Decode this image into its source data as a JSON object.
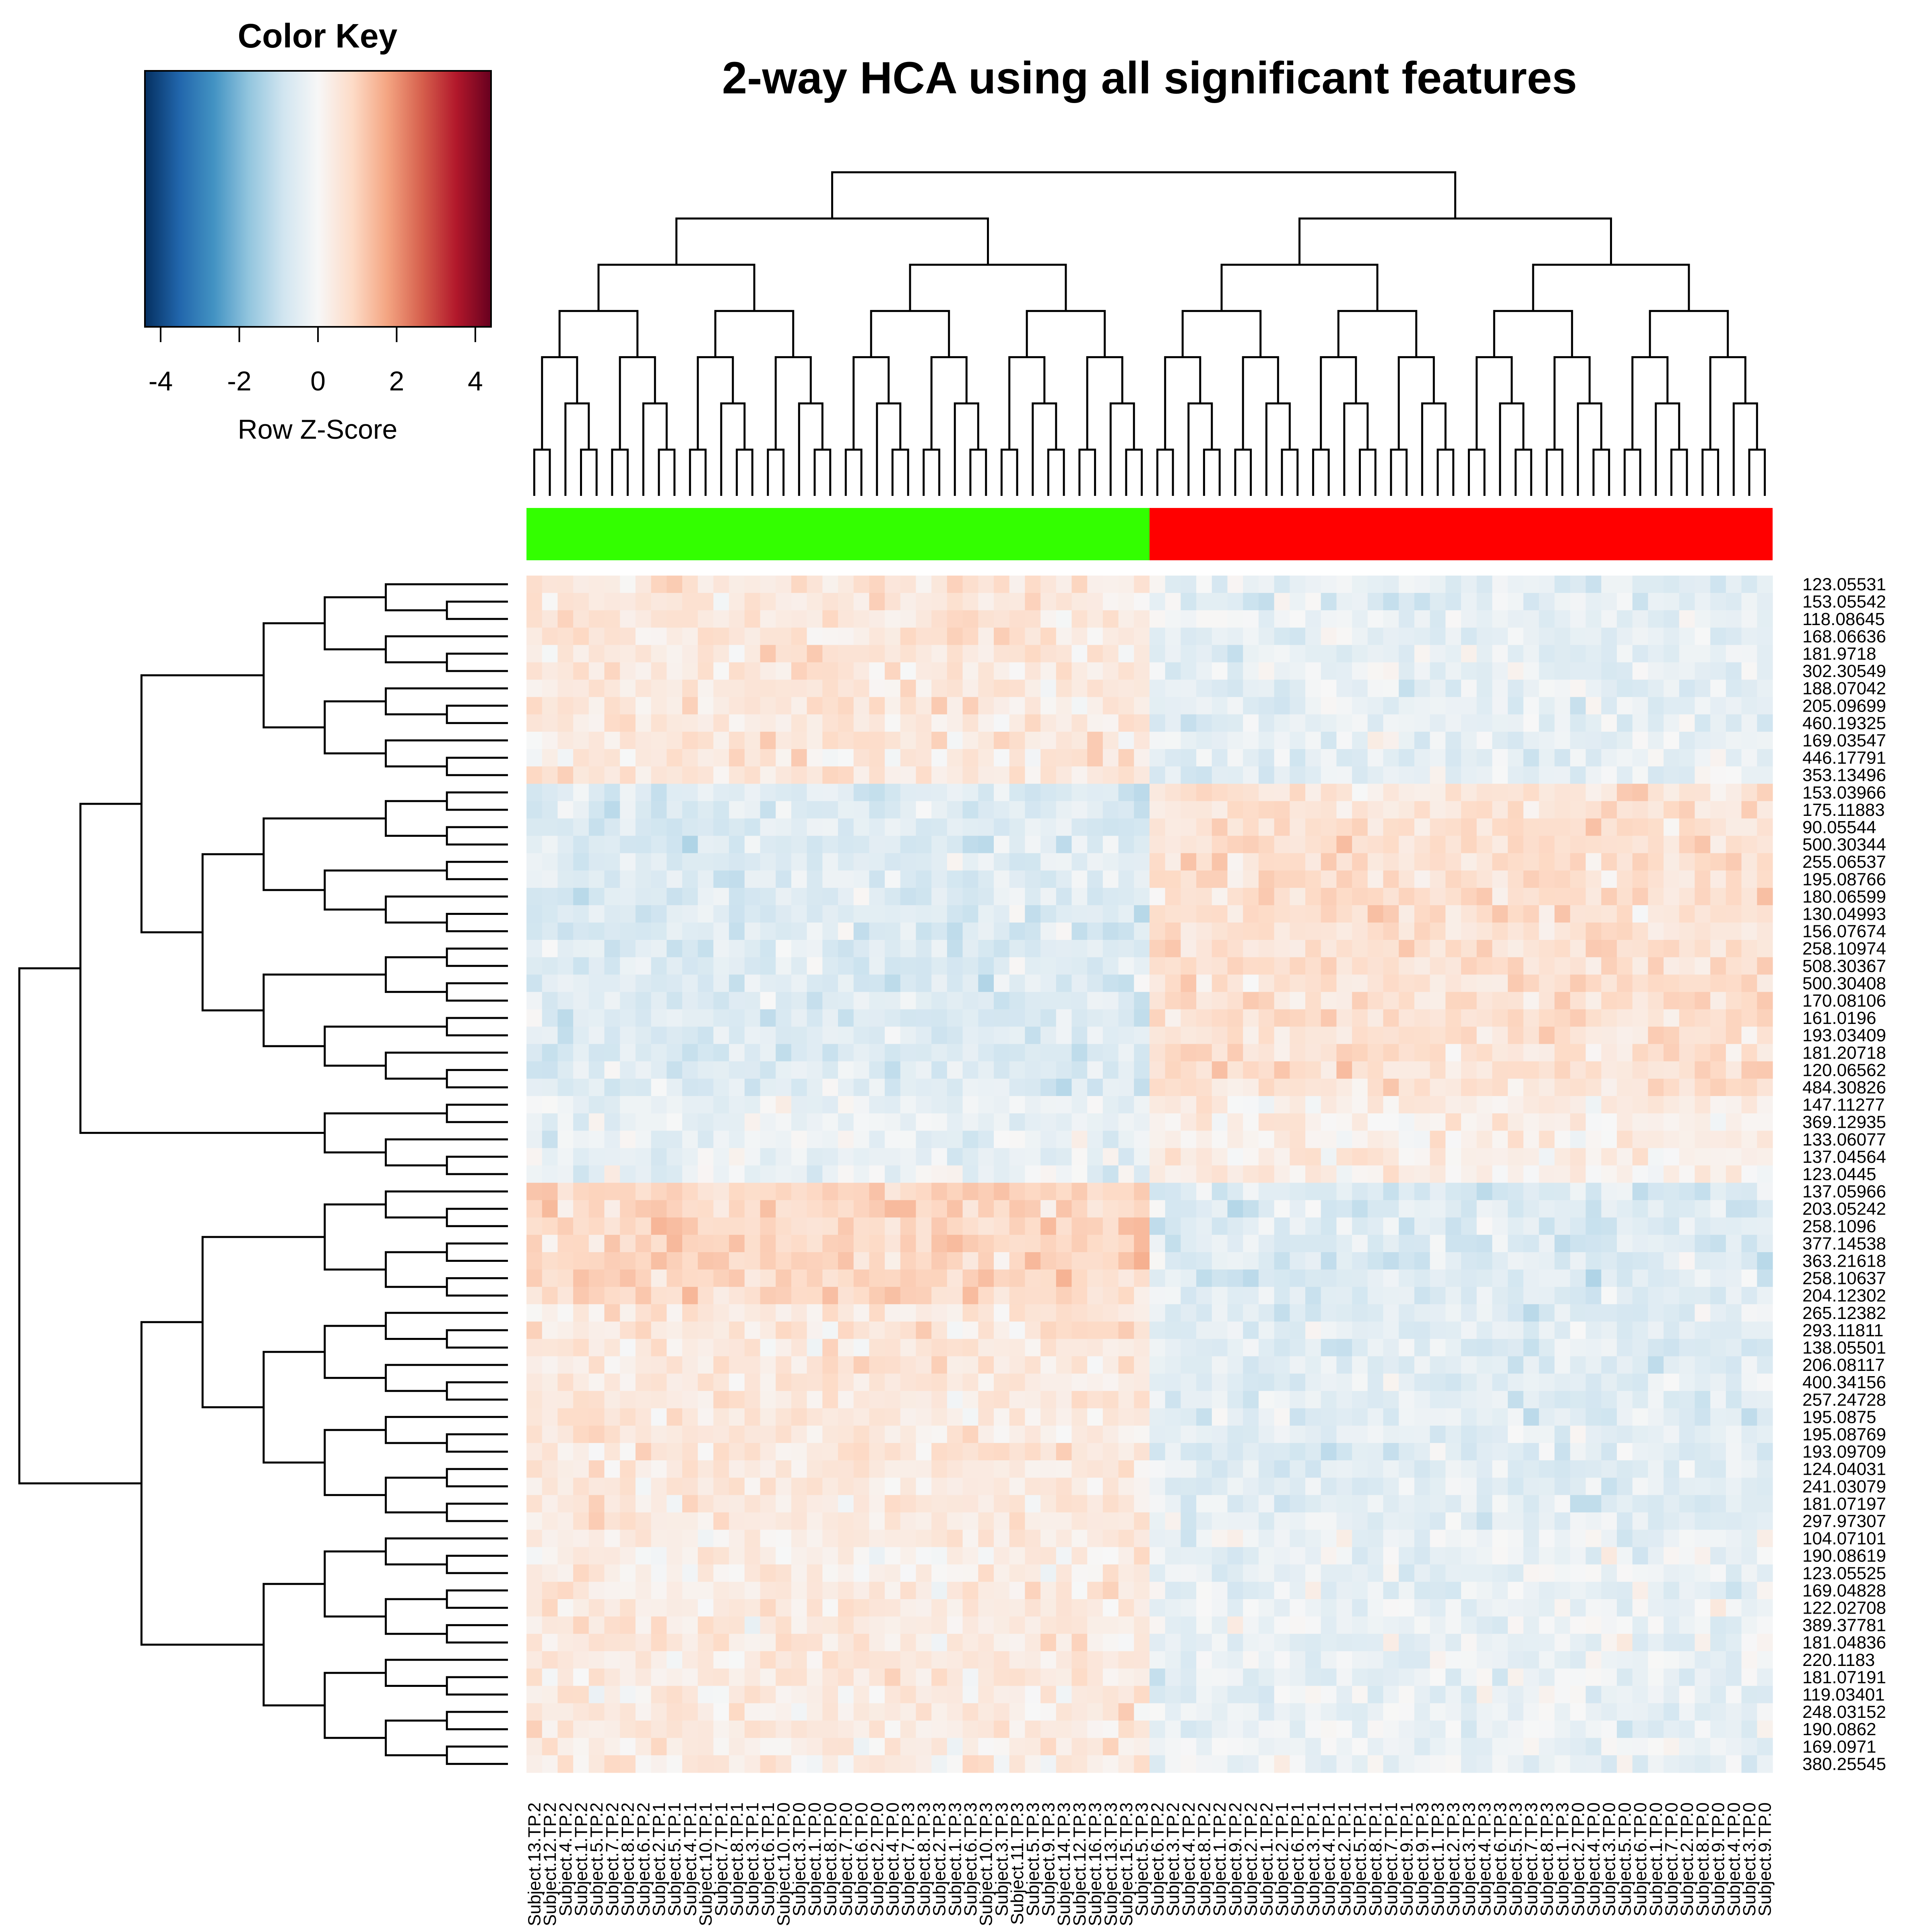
{
  "chart_data": {
    "type": "heatmap",
    "title": "2-way HCA using all significant features",
    "color_key": {
      "title": "Color Key",
      "xlabel": "Row Z-Score",
      "range": [
        -4.4,
        4.4
      ],
      "ticks": [
        "-4",
        "-2",
        "0",
        "2",
        "4"
      ],
      "colors": [
        "#053061",
        "#2166ac",
        "#4393c3",
        "#92c5de",
        "#d1e5f0",
        "#f7f7f7",
        "#fddbc7",
        "#f4a582",
        "#d6604d",
        "#b2182b",
        "#67001f"
      ]
    },
    "column_groups": [
      {
        "color": "#33ff00",
        "count": 40
      },
      {
        "color": "#ff0000",
        "count": 40
      }
    ],
    "columns": [
      "Subject.13.TP.2",
      "Subject.12.TP.2",
      "Subject.4.TP.2",
      "Subject.1.TP.2",
      "Subject.5.TP.2",
      "Subject.7.TP.2",
      "Subject.8.TP.2",
      "Subject.6.TP.2",
      "Subject.2.TP.1",
      "Subject.5.TP.1",
      "Subject.4.TP.1",
      "Subject.10.TP.1",
      "Subject.7.TP.1",
      "Subject.8.TP.1",
      "Subject.3.TP.1",
      "Subject.6.TP.1",
      "Subject.10.TP.0",
      "Subject.3.TP.0",
      "Subject.1.TP.0",
      "Subject.8.TP.0",
      "Subject.7.TP.0",
      "Subject.6.TP.0",
      "Subject.2.TP.0",
      "Subject.4.TP.0",
      "Subject.7.TP.3",
      "Subject.8.TP.3",
      "Subject.2.TP.3",
      "Subject.1.TP.3",
      "Subject.6.TP.3",
      "Subject.10.TP.3",
      "Subject.3.TP.3",
      "Subject.11.TP.3",
      "Subject.5.TP.3",
      "Subject.9.TP.3",
      "Subject.14.TP.3",
      "Subject.12.TP.3",
      "Subject.16.TP.3",
      "Subject.13.TP.3",
      "Subject.15.TP.3",
      "Subject.5.TP.3",
      "Subject.6.TP.2",
      "Subject.3.TP.2",
      "Subject.4.TP.2",
      "Subject.8.TP.2",
      "Subject.1.TP.2",
      "Subject.9.TP.2",
      "Subject.2.TP.2",
      "Subject.1.TP.2",
      "Subject.2.TP.1",
      "Subject.6.TP.1",
      "Subject.3.TP.1",
      "Subject.4.TP.1",
      "Subject.2.TP.1",
      "Subject.5.TP.1",
      "Subject.8.TP.1",
      "Subject.7.TP.1",
      "Subject.9.TP.1",
      "Subject.9.TP.3",
      "Subject.1.TP.3",
      "Subject.2.TP.3",
      "Subject.3.TP.3",
      "Subject.4.TP.3",
      "Subject.6.TP.3",
      "Subject.5.TP.3",
      "Subject.7.TP.3",
      "Subject.8.TP.3",
      "Subject.1.TP.3",
      "Subject.2.TP.0",
      "Subject.4.TP.0",
      "Subject.3.TP.0",
      "Subject.5.TP.0",
      "Subject.6.TP.0",
      "Subject.1.TP.0",
      "Subject.7.TP.0",
      "Subject.2.TP.0",
      "Subject.8.TP.0",
      "Subject.9.TP.0",
      "Subject.4.TP.0",
      "Subject.3.TP.0",
      "Subject.9.TP.0"
    ],
    "rows": [
      "123.05531",
      "153.05542",
      "118.08645",
      "168.06636",
      "181.9718",
      "302.30549",
      "188.07042",
      "205.09699",
      "460.19325",
      "169.03547",
      "446.17791",
      "353.13496",
      "153.03966",
      "175.11883",
      "90.05544",
      "500.30344",
      "255.06537",
      "195.08766",
      "180.06599",
      "130.04993",
      "156.07674",
      "258.10974",
      "508.30367",
      "500.30408",
      "170.08106",
      "161.0196",
      "193.03409",
      "181.20718",
      "120.06562",
      "484.30826",
      "147.11277",
      "369.12935",
      "133.06077",
      "137.04564",
      "123.0445",
      "137.05966",
      "203.05242",
      "258.1096",
      "377.14538",
      "363.21618",
      "258.10637",
      "204.12302",
      "265.12382",
      "293.11811",
      "138.05501",
      "206.08117",
      "400.34156",
      "257.24728",
      "195.0875",
      "195.08769",
      "193.09709",
      "124.04031",
      "241.03079",
      "181.07197",
      "297.97307",
      "104.07101",
      "190.08619",
      "123.05525",
      "169.04828",
      "122.02708",
      "389.37781",
      "181.04836",
      "220.1183",
      "181.07191",
      "119.03401",
      "248.03152",
      "190.0862",
      "169.0971",
      "380.25545"
    ],
    "row_blocks": [
      {
        "start": 0,
        "end": 12,
        "left": 0.5,
        "right": -0.4
      },
      {
        "start": 12,
        "end": 30,
        "left": -0.6,
        "right": 0.7
      },
      {
        "start": 30,
        "end": 35,
        "left": -0.3,
        "right": 0.3
      },
      {
        "start": 35,
        "end": 42,
        "left": 0.9,
        "right": -0.6
      },
      {
        "start": 42,
        "end": 55,
        "left": 0.5,
        "right": -0.5
      },
      {
        "start": 55,
        "end": 69,
        "left": 0.4,
        "right": -0.3
      }
    ],
    "grid": false,
    "legend": "top-left"
  }
}
